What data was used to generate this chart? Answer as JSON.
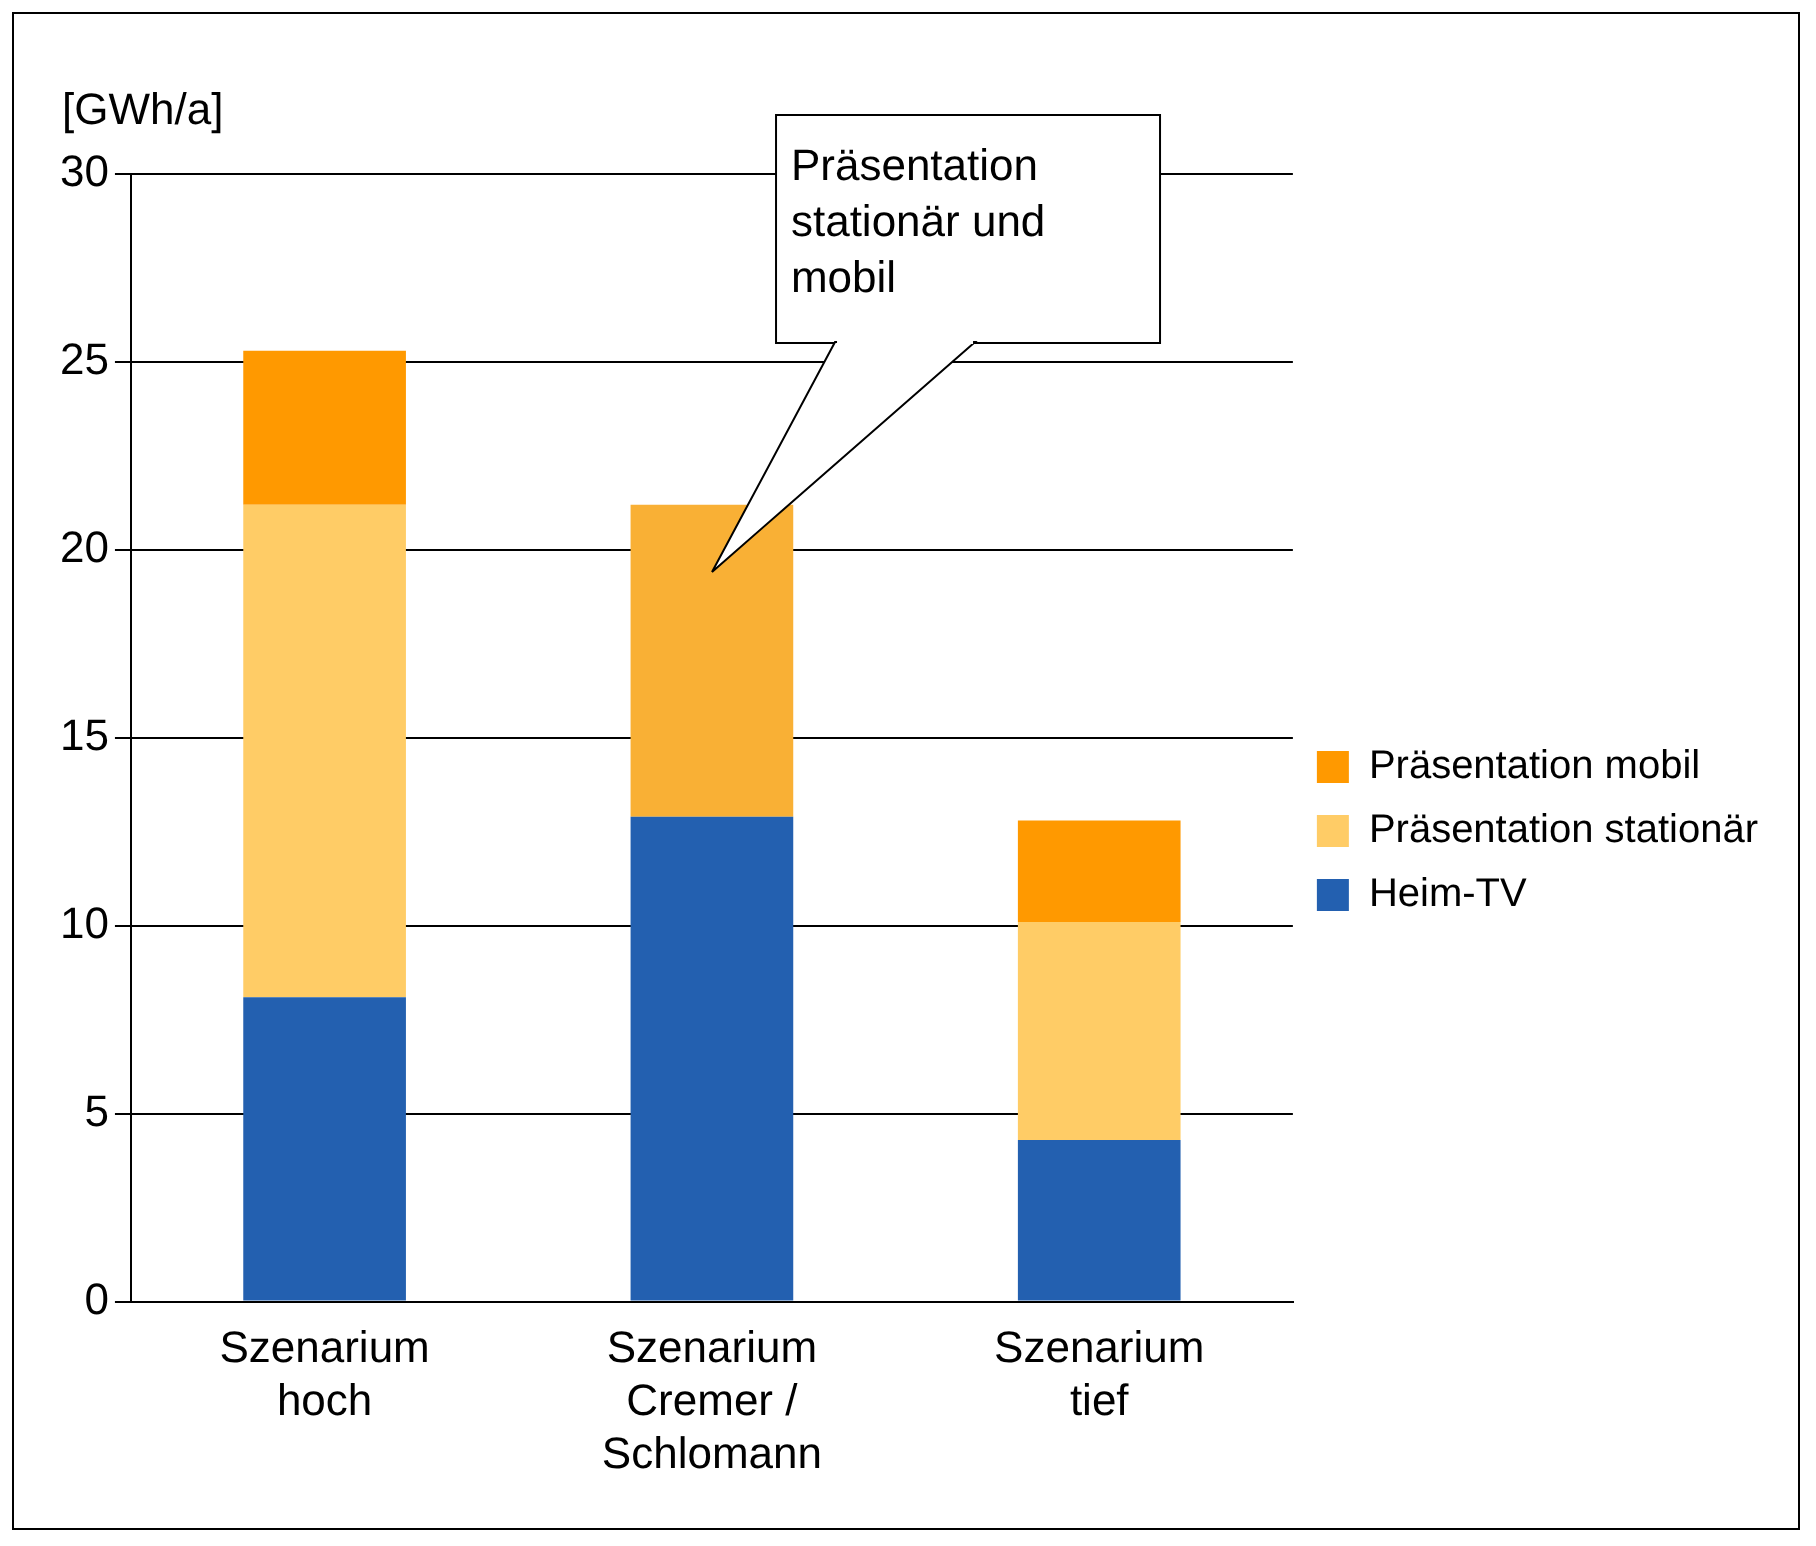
{
  "chart_data": {
    "type": "bar",
    "stacked": true,
    "ylabel": "[GWh/a]",
    "categories": [
      "Szenarium hoch",
      "Szenarium Cremer / Schlomann",
      "Szenarium tief"
    ],
    "series": [
      {
        "name": "Heim-TV",
        "color": "#2360b0",
        "values": [
          8.1,
          12.9,
          4.3
        ]
      },
      {
        "name": "Präsentation stationär",
        "color": "#ffcc66",
        "values": [
          13.1,
          null,
          5.8
        ]
      },
      {
        "name": "Präsentation mobil",
        "color": "#ff9900",
        "values": [
          4.1,
          null,
          2.7
        ]
      },
      {
        "color": "#f9b035",
        "values": [
          null,
          8.3,
          null
        ]
      }
    ],
    "ylim": [
      0,
      30
    ],
    "yticks": [
      0,
      5,
      10,
      15,
      20,
      25,
      30
    ],
    "grid": "y",
    "legend": "right",
    "annotations": [
      "Präsentation stationär und mobil"
    ]
  }
}
